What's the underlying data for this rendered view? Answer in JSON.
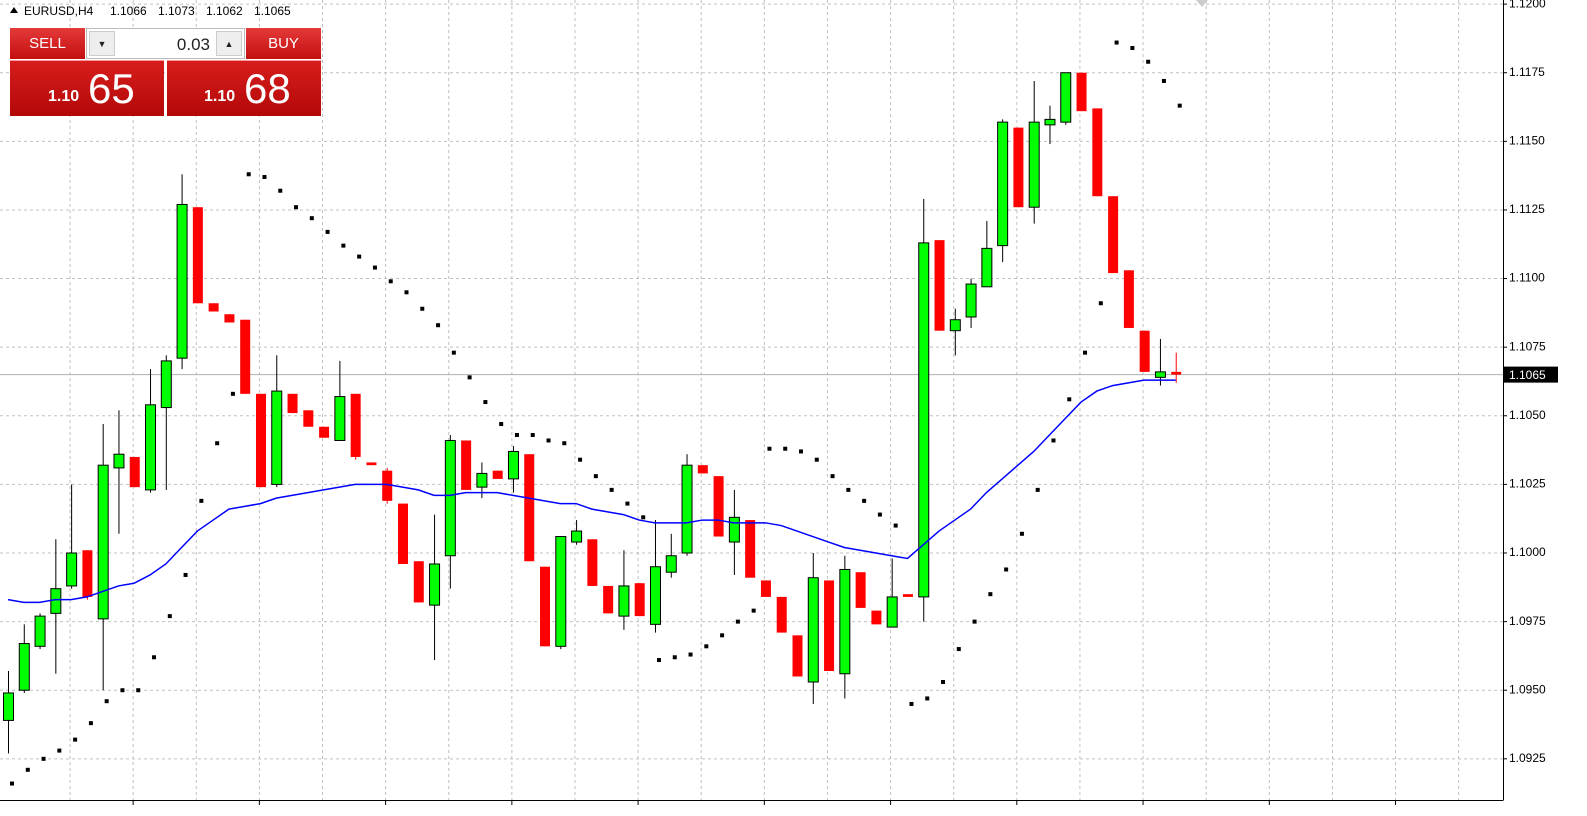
{
  "chart_data": {
    "type": "candlestick",
    "title": "EURUSD,H4",
    "header_values": [
      1.1066,
      1.1073,
      1.1062,
      1.1065
    ],
    "up_color": "#00ff00",
    "down_color": "#ff0000",
    "grid": true,
    "ylim": [
      1.091,
      1.12015
    ],
    "yticks": [
      1.0925,
      {
        "value": 1.095,
        "label": "1.0950"
      },
      1.0975,
      {
        "value": 1.1,
        "label": "1.1000"
      },
      1.1025,
      {
        "value": 1.105,
        "label": "1.1050"
      },
      1.1075,
      {
        "value": 1.11,
        "label": "1.1100"
      },
      1.1125,
      {
        "value": 1.115,
        "label": "1.1150"
      },
      1.1175,
      {
        "value": 1.12,
        "label": "1.1200"
      }
    ],
    "last_price": 1.1065,
    "open": [
      1.0939,
      1.095,
      1.0966,
      1.0978,
      1.0988,
      1.1001,
      1.0976,
      1.1031,
      1.1035,
      1.1023,
      1.1053,
      1.1071,
      1.1126,
      1.1091,
      1.1087,
      1.1085,
      1.1058,
      1.1025,
      1.1058,
      1.1052,
      1.1046,
      1.1041,
      1.1058,
      1.1033,
      1.103,
      1.1018,
      1.0997,
      1.0981,
      1.0999,
      1.1041,
      1.1024,
      1.103,
      1.1027,
      1.1036,
      1.0995,
      1.0966,
      1.1004,
      1.1005,
      1.0988,
      1.0977,
      1.0989,
      1.0974,
      1.0993,
      1.1,
      1.1032,
      1.1028,
      1.1004,
      1.1012,
      1.099,
      1.0984,
      1.097,
      1.0953,
      1.099,
      1.0956,
      1.0993,
      1.0979,
      1.0973,
      1.0985,
      1.0984,
      1.1114,
      1.1081,
      1.1086,
      1.1097,
      1.1112,
      1.1155,
      1.1126,
      1.1156,
      1.1157,
      1.1175,
      1.1162,
      1.113,
      1.1103,
      1.1081,
      1.1064,
      1.1066
    ],
    "high": [
      1.0957,
      1.0974,
      1.0978,
      1.1005,
      1.1025,
      1.1001,
      1.1047,
      1.1052,
      1.1035,
      1.1067,
      1.1072,
      1.1138,
      1.1126,
      1.1091,
      1.1087,
      1.1085,
      1.1058,
      1.1072,
      1.1058,
      1.1052,
      1.1046,
      1.107,
      1.1058,
      1.1033,
      1.1031,
      1.1018,
      1.0997,
      1.1014,
      1.1043,
      1.1041,
      1.1033,
      1.103,
      1.1039,
      1.1036,
      1.0995,
      1.1006,
      1.1012,
      1.1005,
      1.0988,
      1.1001,
      1.0989,
      1.1012,
      1.1007,
      1.1036,
      1.1032,
      1.1028,
      1.1023,
      1.1012,
      1.099,
      1.0984,
      1.097,
      1.1,
      1.099,
      1.0999,
      1.0993,
      1.0979,
      1.0998,
      1.0985,
      1.1129,
      1.1114,
      1.1089,
      1.11,
      1.1121,
      1.1158,
      1.1155,
      1.1172,
      1.1163,
      1.1175,
      1.1175,
      1.1162,
      1.113,
      1.1103,
      1.1081,
      1.1078,
      1.1073
    ],
    "low": [
      1.0927,
      1.0949,
      1.0965,
      1.0956,
      1.0987,
      1.0983,
      1.095,
      1.1007,
      1.1024,
      1.1022,
      1.1023,
      1.1067,
      1.1091,
      1.1088,
      1.1084,
      1.1058,
      1.1024,
      1.1024,
      1.1051,
      1.1046,
      1.1042,
      1.1041,
      1.1034,
      1.1032,
      1.1018,
      1.0996,
      1.0982,
      1.0961,
      1.0987,
      1.1023,
      1.102,
      1.1027,
      1.1022,
      1.0997,
      1.0966,
      1.0965,
      1.1003,
      1.0988,
      1.0978,
      1.0972,
      1.0977,
      1.0971,
      1.0991,
      1.0999,
      1.1029,
      1.1006,
      1.0992,
      1.0991,
      1.0984,
      1.0971,
      1.0955,
      1.0945,
      1.0957,
      1.0947,
      1.098,
      1.0974,
      1.0973,
      1.0984,
      1.0975,
      1.1081,
      1.1072,
      1.1082,
      1.1097,
      1.1106,
      1.1126,
      1.112,
      1.1149,
      1.1156,
      1.1161,
      1.113,
      1.1102,
      1.1082,
      1.1066,
      1.1061,
      1.1062
    ],
    "close": [
      1.0949,
      1.0967,
      1.0977,
      1.0987,
      1.1,
      1.0984,
      1.1032,
      1.1036,
      1.1024,
      1.1054,
      1.107,
      1.1127,
      1.1091,
      1.1088,
      1.1084,
      1.1058,
      1.1024,
      1.1059,
      1.1051,
      1.1046,
      1.1042,
      1.1057,
      1.1035,
      1.1032,
      1.1019,
      1.0996,
      1.0982,
      1.0996,
      1.1041,
      1.1023,
      1.1029,
      1.1027,
      1.1037,
      1.0997,
      1.0966,
      1.1006,
      1.1008,
      1.0988,
      1.0978,
      1.0988,
      1.0977,
      1.0995,
      1.0999,
      1.1032,
      1.1029,
      1.1006,
      1.1013,
      1.0991,
      1.0984,
      1.0971,
      1.0955,
      1.0991,
      1.0957,
      1.0994,
      1.098,
      1.0974,
      1.0984,
      1.0984,
      1.1113,
      1.1081,
      1.1085,
      1.1098,
      1.1111,
      1.1157,
      1.1126,
      1.1157,
      1.1158,
      1.1175,
      1.1161,
      1.113,
      1.1102,
      1.1082,
      1.1066,
      1.1066,
      1.1065
    ],
    "sar": {
      "color": "#000000",
      "values": [
        1.0916,
        1.0921,
        1.0925,
        1.0928,
        1.0932,
        1.0938,
        1.0946,
        1.095,
        1.095,
        1.0962,
        1.0977,
        1.0992,
        1.1019,
        1.104,
        1.1058,
        1.1138,
        1.1137,
        1.1132,
        1.1126,
        1.1122,
        1.1117,
        1.1112,
        1.1108,
        1.1104,
        1.1099,
        1.1095,
        1.1089,
        1.1083,
        1.1073,
        1.1064,
        1.1055,
        1.1047,
        1.1043,
        1.1043,
        1.1041,
        1.104,
        1.1034,
        1.1028,
        1.1023,
        1.1018,
        1.1013,
        1.0961,
        1.0962,
        1.0963,
        1.0966,
        1.097,
        1.0975,
        1.0979,
        1.1038,
        1.1038,
        1.1037,
        1.1034,
        1.1028,
        1.1023,
        1.1019,
        1.1014,
        1.101,
        1.0945,
        1.0947,
        1.0953,
        1.0965,
        1.0975,
        1.0985,
        1.0994,
        1.1007,
        1.1023,
        1.1041,
        1.1056,
        1.1073,
        1.1091,
        1.1186,
        1.1184,
        1.1179,
        1.1172,
        1.1163
      ]
    },
    "ma": {
      "color": "#0000ff",
      "values": [
        1.0983,
        1.0982,
        1.0982,
        1.0983,
        1.0983,
        1.0984,
        1.0986,
        1.0988,
        1.0989,
        1.0992,
        1.0996,
        1.1002,
        1.1008,
        1.1012,
        1.1016,
        1.1017,
        1.1018,
        1.102,
        1.1021,
        1.1022,
        1.1023,
        1.1024,
        1.1025,
        1.1025,
        1.1025,
        1.1024,
        1.1023,
        1.1021,
        1.1021,
        1.1022,
        1.1022,
        1.1022,
        1.1021,
        1.102,
        1.1019,
        1.1018,
        1.1018,
        1.1016,
        1.1015,
        1.1014,
        1.1012,
        1.1011,
        1.1011,
        1.1011,
        1.1012,
        1.1012,
        1.1011,
        1.1011,
        1.1011,
        1.101,
        1.1008,
        1.1006,
        1.1004,
        1.1002,
        1.1001,
        1.1,
        1.0999,
        1.0998,
        1.1003,
        1.1008,
        1.1012,
        1.1016,
        1.1022,
        1.1027,
        1.1032,
        1.1037,
        1.1043,
        1.1049,
        1.1055,
        1.1059,
        1.1061,
        1.1062,
        1.1063,
        1.1063,
        1.1063
      ]
    }
  },
  "trade_panel": {
    "sell": "SELL",
    "buy": "BUY",
    "lot": "0.03",
    "bid_prefix": "1.10",
    "bid_big": "65",
    "ask_prefix": "1.10",
    "ask_big": "68"
  }
}
